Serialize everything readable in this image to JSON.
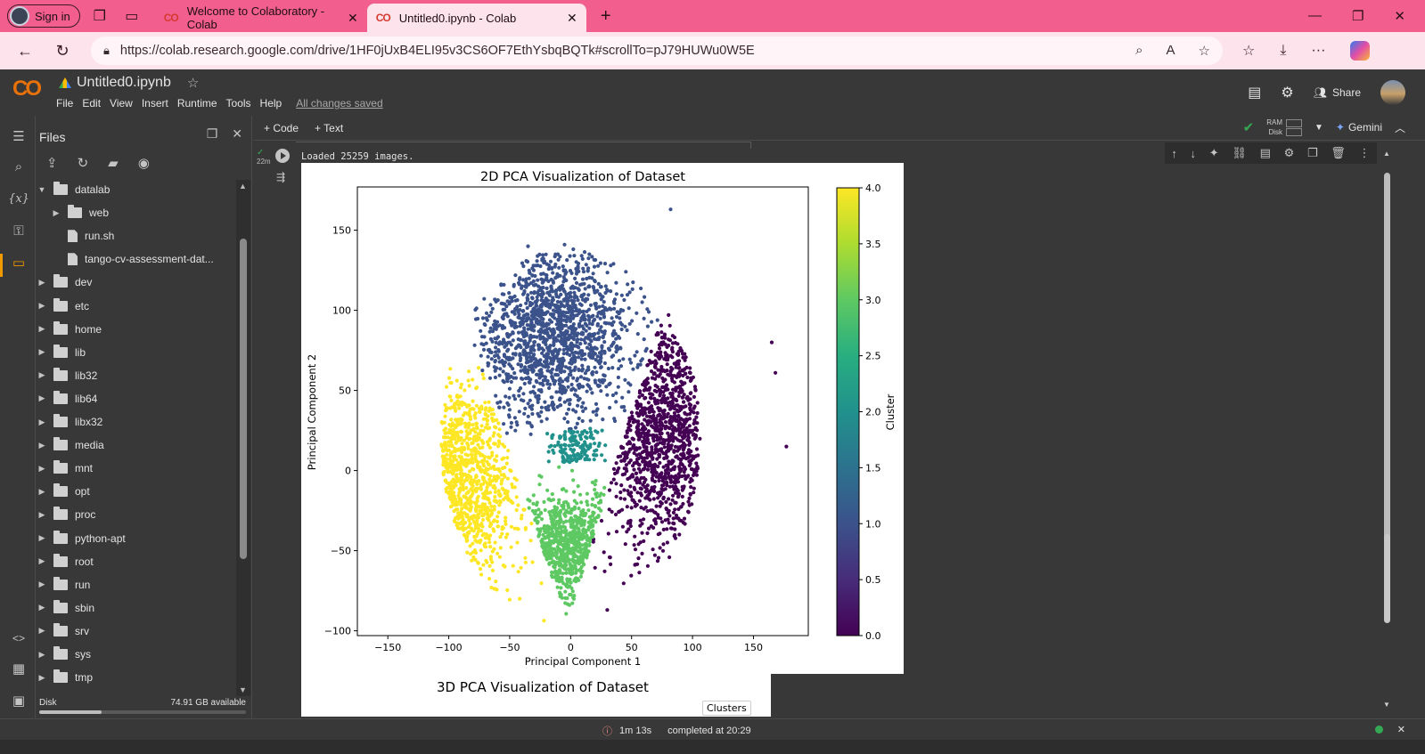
{
  "browser": {
    "sign_in": "Sign in",
    "tabs": [
      {
        "label": "Welcome to Colaboratory - Colab",
        "active": false
      },
      {
        "label": "Untitled0.ipynb - Colab",
        "active": true
      }
    ],
    "new_tab": "+",
    "url": "https://colab.research.google.com/drive/1HF0jUxB4ELI95v3CS6OF7EthYsbqBQTk#scrollTo=pJ79HUWu0W5E"
  },
  "colab": {
    "logo": "CO",
    "title": "Untitled0.ipynb",
    "menus": [
      "File",
      "Edit",
      "View",
      "Insert",
      "Runtime",
      "Tools",
      "Help"
    ],
    "saved_status": "All changes saved",
    "share": "Share",
    "add_code": "+ Code",
    "add_text": "+ Text",
    "ram_label": "RAM",
    "disk_label": "Disk",
    "gemini": "Gemini"
  },
  "files_panel": {
    "title": "Files",
    "tree": [
      {
        "name": "datalab",
        "type": "folder",
        "expanded": true,
        "depth": 0
      },
      {
        "name": "web",
        "type": "folder",
        "expanded": false,
        "depth": 1
      },
      {
        "name": "run.sh",
        "type": "file",
        "depth": 1
      },
      {
        "name": "tango-cv-assessment-dat...",
        "type": "file",
        "depth": 1
      },
      {
        "name": "dev",
        "type": "folder",
        "expanded": false,
        "depth": 0
      },
      {
        "name": "etc",
        "type": "folder",
        "expanded": false,
        "depth": 0
      },
      {
        "name": "home",
        "type": "folder",
        "expanded": false,
        "depth": 0
      },
      {
        "name": "lib",
        "type": "folder",
        "expanded": false,
        "depth": 0
      },
      {
        "name": "lib32",
        "type": "folder",
        "expanded": false,
        "depth": 0
      },
      {
        "name": "lib64",
        "type": "folder",
        "expanded": false,
        "depth": 0
      },
      {
        "name": "libx32",
        "type": "folder",
        "expanded": false,
        "depth": 0
      },
      {
        "name": "media",
        "type": "folder",
        "expanded": false,
        "depth": 0
      },
      {
        "name": "mnt",
        "type": "folder",
        "expanded": false,
        "depth": 0
      },
      {
        "name": "opt",
        "type": "folder",
        "expanded": false,
        "depth": 0
      },
      {
        "name": "proc",
        "type": "folder",
        "expanded": false,
        "depth": 0
      },
      {
        "name": "python-apt",
        "type": "folder",
        "expanded": false,
        "depth": 0
      },
      {
        "name": "root",
        "type": "folder",
        "expanded": false,
        "depth": 0
      },
      {
        "name": "run",
        "type": "folder",
        "expanded": false,
        "depth": 0
      },
      {
        "name": "sbin",
        "type": "folder",
        "expanded": false,
        "depth": 0
      },
      {
        "name": "srv",
        "type": "folder",
        "expanded": false,
        "depth": 0
      },
      {
        "name": "sys",
        "type": "folder",
        "expanded": false,
        "depth": 0
      },
      {
        "name": "tmp",
        "type": "folder",
        "expanded": false,
        "depth": 0
      }
    ],
    "disk_label": "Disk",
    "disk_available": "74.91 GB available",
    "disk_used_fraction": 0.3
  },
  "cell": {
    "exec_time": "22m",
    "output_text": "Loaded 25259 images."
  },
  "chart_data": {
    "type": "scatter",
    "title": "2D PCA Visualization of Dataset",
    "xlabel": "Principal Component 1",
    "ylabel": "Principal Component 2",
    "xlim": [
      -175,
      195
    ],
    "ylim": [
      -103,
      177
    ],
    "x_ticks": [
      -150,
      -100,
      -50,
      0,
      50,
      100,
      150
    ],
    "y_ticks": [
      -100,
      -50,
      0,
      50,
      100,
      150
    ],
    "grid": false,
    "colorbar": {
      "label": "Cluster",
      "range": [
        0.0,
        4.0
      ],
      "ticks": [
        "0.0",
        "0.5",
        "1.0",
        "1.5",
        "2.0",
        "2.5",
        "3.0",
        "3.5",
        "4.0"
      ]
    },
    "series": [
      {
        "cluster": 0,
        "color": "#440154",
        "center": [
          75,
          25
        ],
        "spread": [
          27,
          36
        ],
        "approx_points": 5000
      },
      {
        "cluster": 1,
        "color": "#3b528b",
        "center": [
          -15,
          85
        ],
        "spread": [
          33,
          27
        ],
        "approx_points": 5000
      },
      {
        "cluster": 2,
        "color": "#21918c",
        "center": [
          5,
          15
        ],
        "spread": [
          14,
          22
        ],
        "approx_points": 1200
      },
      {
        "cluster": 3,
        "color": "#5ec962",
        "center": [
          -5,
          -50
        ],
        "spread": [
          33,
          17
        ],
        "approx_points": 5000
      },
      {
        "cluster": 4,
        "color": "#fde725",
        "center": [
          -95,
          -5
        ],
        "spread": [
          27,
          31
        ],
        "approx_points": 5000
      }
    ],
    "outliers": [
      [
        82,
        163
      ],
      [
        -35,
        140
      ],
      [
        -5,
        141
      ],
      [
        165,
        80
      ],
      [
        168,
        61
      ],
      [
        177,
        15
      ],
      [
        30,
        -87
      ],
      [
        -65,
        -73
      ]
    ]
  },
  "second_figure": {
    "title": "3D PCA Visualization of Dataset",
    "legend_title": "Clusters"
  },
  "status": {
    "elapsed": "1m 13s",
    "completed": "completed at 20:29"
  }
}
